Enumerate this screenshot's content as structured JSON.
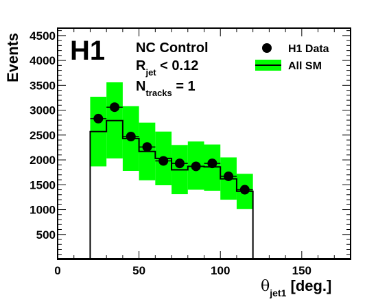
{
  "chart_data": {
    "type": "histogram",
    "logo": "H1",
    "annotations": {
      "line1": "NC Control",
      "line2_main": "R",
      "line2_sub": "jet",
      "line2_rest": " < 0.12",
      "line3_main": "N",
      "line3_sub": "tracks",
      "line3_rest": " = 1"
    },
    "ylabel": "Events",
    "xlabel_symbol": "θ",
    "xlabel_sub": "jet1",
    "xlabel_rest": " [deg.]",
    "xlim": [
      0,
      180
    ],
    "ylim": [
      0,
      4650
    ],
    "x_ticks": [
      0,
      50,
      100,
      150
    ],
    "y_ticks": [
      500,
      1000,
      1500,
      2000,
      2500,
      3000,
      3500,
      4000,
      4500
    ],
    "legend": {
      "position": "top-right",
      "data_label": "H1 Data",
      "sm_label": "All SM"
    },
    "colors": {
      "band": "#00ff00",
      "data": "#000000",
      "sm_line": "#000000"
    },
    "bin_edges": [
      20,
      30,
      40,
      50,
      60,
      70,
      80,
      90,
      100,
      110,
      120
    ],
    "data": {
      "x": [
        25,
        35,
        45,
        55,
        65,
        75,
        85,
        95,
        105,
        115
      ],
      "y": [
        2830,
        3060,
        2470,
        2260,
        1980,
        1930,
        1870,
        1930,
        1670,
        1400
      ]
    },
    "sm": {
      "values": [
        2570,
        2790,
        2430,
        2170,
        2030,
        1800,
        1870,
        1860,
        1620,
        1370
      ],
      "band_low": [
        1870,
        2030,
        1780,
        1590,
        1490,
        1310,
        1400,
        1380,
        1200,
        1010
      ],
      "band_high": [
        3270,
        3560,
        3080,
        2750,
        2570,
        2300,
        2370,
        2310,
        2050,
        1720
      ]
    }
  }
}
